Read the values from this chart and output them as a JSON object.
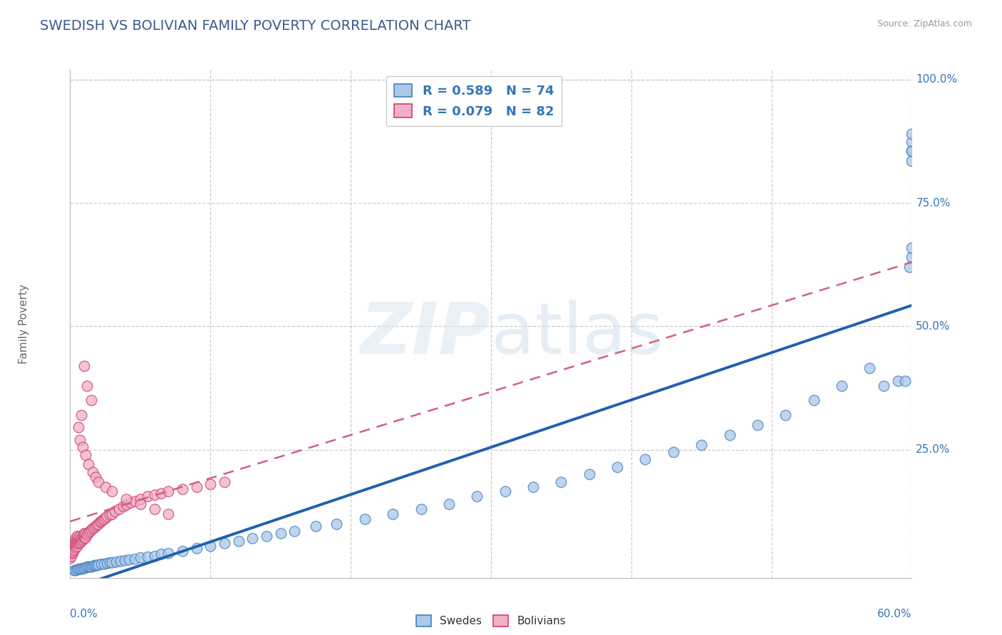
{
  "title": "SWEDISH VS BOLIVIAN FAMILY POVERTY CORRELATION CHART",
  "source": "Source: ZipAtlas.com",
  "ylabel": "Family Poverty",
  "xmin": 0.0,
  "xmax": 0.6,
  "ymin": -0.01,
  "ymax": 1.02,
  "swedes_color": "#aac8e8",
  "swedes_edge_color": "#4580c0",
  "bolivians_color": "#f0b0c8",
  "bolivians_edge_color": "#d04070",
  "swedes_line_color": "#2060b0",
  "bolivians_line_color": "#d06080",
  "R_swedes": 0.589,
  "N_swedes": 74,
  "R_bolivians": 0.079,
  "N_bolivians": 82,
  "title_color": "#3a5a8a",
  "title_fontsize": 14,
  "ytick_right_labels": [
    "25.0%",
    "50.0%",
    "75.0%",
    "100.0%"
  ],
  "ytick_right_values": [
    0.25,
    0.5,
    0.75,
    1.0
  ],
  "swedes_x": [
    0.003,
    0.004,
    0.005,
    0.006,
    0.007,
    0.008,
    0.009,
    0.01,
    0.011,
    0.012,
    0.013,
    0.014,
    0.015,
    0.016,
    0.017,
    0.018,
    0.019,
    0.02,
    0.022,
    0.024,
    0.026,
    0.028,
    0.03,
    0.033,
    0.036,
    0.039,
    0.042,
    0.046,
    0.05,
    0.055,
    0.06,
    0.065,
    0.07,
    0.08,
    0.09,
    0.1,
    0.11,
    0.12,
    0.13,
    0.14,
    0.15,
    0.16,
    0.175,
    0.19,
    0.21,
    0.23,
    0.25,
    0.27,
    0.29,
    0.31,
    0.33,
    0.35,
    0.37,
    0.39,
    0.41,
    0.43,
    0.45,
    0.47,
    0.49,
    0.51,
    0.53,
    0.55,
    0.57,
    0.58,
    0.59,
    0.595,
    0.598,
    0.6,
    0.6,
    0.6,
    0.6,
    0.6,
    0.6,
    0.6
  ],
  "swedes_y": [
    0.005,
    0.006,
    0.007,
    0.008,
    0.008,
    0.009,
    0.01,
    0.01,
    0.011,
    0.012,
    0.012,
    0.013,
    0.013,
    0.014,
    0.015,
    0.015,
    0.016,
    0.017,
    0.018,
    0.019,
    0.02,
    0.021,
    0.022,
    0.023,
    0.024,
    0.025,
    0.027,
    0.029,
    0.031,
    0.033,
    0.035,
    0.038,
    0.04,
    0.045,
    0.05,
    0.055,
    0.06,
    0.065,
    0.07,
    0.075,
    0.08,
    0.085,
    0.095,
    0.1,
    0.11,
    0.12,
    0.13,
    0.14,
    0.155,
    0.165,
    0.175,
    0.185,
    0.2,
    0.215,
    0.23,
    0.245,
    0.26,
    0.28,
    0.3,
    0.32,
    0.35,
    0.38,
    0.415,
    0.38,
    0.39,
    0.39,
    0.62,
    0.64,
    0.66,
    0.835,
    0.855,
    0.875,
    0.89,
    0.855
  ],
  "bolivians_x": [
    0.0,
    0.001,
    0.001,
    0.002,
    0.002,
    0.002,
    0.003,
    0.003,
    0.003,
    0.004,
    0.004,
    0.004,
    0.004,
    0.005,
    0.005,
    0.005,
    0.005,
    0.006,
    0.006,
    0.006,
    0.007,
    0.007,
    0.007,
    0.008,
    0.008,
    0.009,
    0.009,
    0.01,
    0.01,
    0.01,
    0.011,
    0.011,
    0.012,
    0.013,
    0.014,
    0.015,
    0.016,
    0.017,
    0.018,
    0.019,
    0.02,
    0.021,
    0.022,
    0.023,
    0.024,
    0.025,
    0.026,
    0.028,
    0.03,
    0.032,
    0.035,
    0.038,
    0.04,
    0.043,
    0.046,
    0.05,
    0.055,
    0.06,
    0.065,
    0.07,
    0.08,
    0.09,
    0.1,
    0.11,
    0.01,
    0.012,
    0.015,
    0.008,
    0.006,
    0.007,
    0.009,
    0.011,
    0.013,
    0.016,
    0.018,
    0.02,
    0.025,
    0.03,
    0.04,
    0.05,
    0.06,
    0.07
  ],
  "bolivians_y": [
    0.03,
    0.035,
    0.04,
    0.042,
    0.045,
    0.05,
    0.048,
    0.055,
    0.06,
    0.052,
    0.058,
    0.065,
    0.07,
    0.055,
    0.06,
    0.068,
    0.075,
    0.06,
    0.065,
    0.072,
    0.062,
    0.068,
    0.075,
    0.065,
    0.07,
    0.068,
    0.075,
    0.07,
    0.075,
    0.08,
    0.072,
    0.08,
    0.078,
    0.082,
    0.085,
    0.088,
    0.09,
    0.092,
    0.095,
    0.098,
    0.1,
    0.103,
    0.105,
    0.108,
    0.11,
    0.112,
    0.115,
    0.118,
    0.12,
    0.125,
    0.13,
    0.135,
    0.138,
    0.142,
    0.145,
    0.15,
    0.155,
    0.158,
    0.162,
    0.165,
    0.17,
    0.175,
    0.18,
    0.185,
    0.42,
    0.38,
    0.35,
    0.32,
    0.295,
    0.27,
    0.255,
    0.24,
    0.22,
    0.205,
    0.195,
    0.185,
    0.175,
    0.165,
    0.15,
    0.14,
    0.13,
    0.12
  ]
}
